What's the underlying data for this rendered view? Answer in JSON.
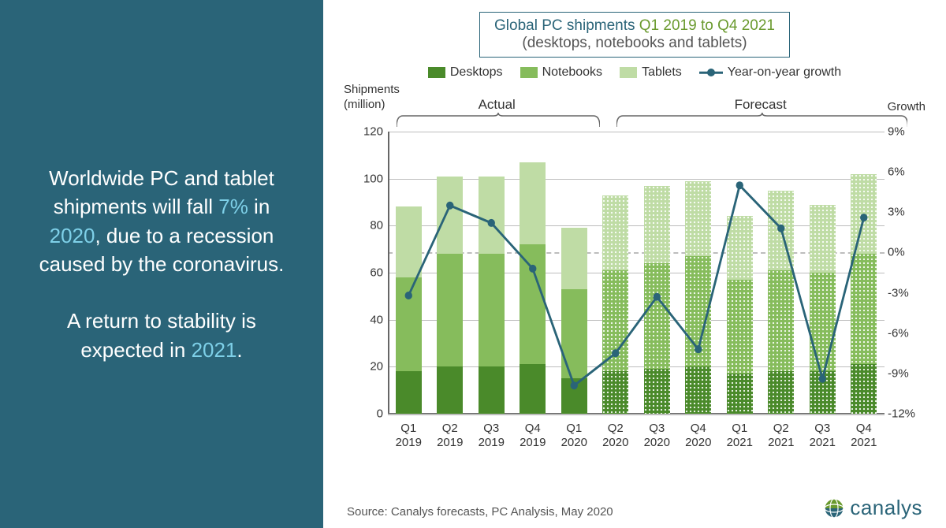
{
  "sidebar": {
    "para1_pre": "Worldwide PC and tablet shipments will fall ",
    "para1_hl1": "7%",
    "para1_mid": " in ",
    "para1_hl2": "2020",
    "para1_post": ", due to a recession caused by the coronavirus.",
    "para2_pre": "A return to stability is expected in ",
    "para2_hl": "2021",
    "para2_post": "."
  },
  "chart_title": {
    "main": "Global PC shipments ",
    "range": "Q1 2019 to Q4 2021",
    "subtitle": "(desktops, notebooks and tablets)"
  },
  "legend": {
    "desktops": "Desktops",
    "notebooks": "Notebooks",
    "tablets": "Tablets",
    "yoy": "Year-on-year growth"
  },
  "y_left_label": "Shipments\n(million)",
  "y_right_label": "Growth",
  "region_actual": "Actual",
  "region_forecast": "Forecast",
  "source": "Source:  Canalys forecasts, PC Analysis, May 2020",
  "brand": "canalys",
  "colors": {
    "desktops": "#4a8a2a",
    "notebooks": "#86bc5c",
    "tablets": "#bfdca5",
    "line": "#2a6478",
    "sidebar_bg": "#2a6478",
    "highlight": "#7ed0e8",
    "grid": "#bdbdbd",
    "forecast_pattern_opacity": 0.85
  },
  "chart": {
    "type": "stacked-bar + line (dual axis)",
    "title_fontsize": 19,
    "legend_fontsize": 16,
    "axis_fontsize": 15,
    "bar_width_ratio": 0.62,
    "line_width": 3,
    "marker_size": 10,
    "y_left": {
      "min": 0,
      "max": 120,
      "step": 20
    },
    "y_right": {
      "min": -12,
      "max": 9,
      "step": 3
    },
    "actual_count": 5,
    "categories": [
      "Q1\n2019",
      "Q2\n2019",
      "Q3\n2019",
      "Q4\n2019",
      "Q1\n2020",
      "Q2\n2020",
      "Q3\n2020",
      "Q4\n2020",
      "Q1\n2021",
      "Q2\n2021",
      "Q3\n2021",
      "Q4\n2021"
    ],
    "desktops": [
      18,
      20,
      20,
      21,
      15,
      18,
      19,
      20,
      17,
      18,
      18,
      21
    ],
    "notebooks": [
      40,
      48,
      48,
      51,
      38,
      43,
      45,
      47,
      40,
      43,
      42,
      47
    ],
    "tablets": [
      30,
      33,
      33,
      35,
      26,
      32,
      33,
      32,
      27,
      34,
      29,
      34
    ],
    "yoy_growth": [
      -3.2,
      3.5,
      2.2,
      -1.2,
      -9.9,
      -7.5,
      -3.3,
      -7.2,
      5.0,
      1.8,
      -9.4,
      2.6
    ]
  }
}
